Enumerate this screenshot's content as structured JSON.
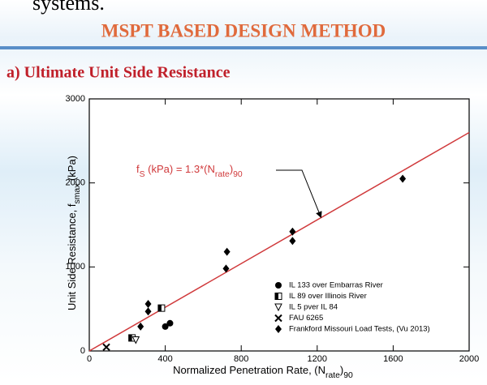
{
  "top_text": "systems.",
  "slide_title": "MSPT BASED DESIGN METHOD",
  "section_title": "a) Ultimate Unit Side Resistance",
  "chart_data": {
    "type": "scatter",
    "x_label": [
      {
        "text": "Normalized Penetration Rate, (N"
      },
      {
        "text": "rate",
        "sub": true
      },
      {
        "text": ")"
      },
      {
        "text": "90",
        "sub": true
      }
    ],
    "y_label": [
      {
        "text": "Unit Side Resistance, f"
      },
      {
        "text": "smax",
        "sub": true
      },
      {
        "text": " (kPa)"
      }
    ],
    "xlim": [
      0,
      2000
    ],
    "xticks": [
      0,
      400,
      800,
      1200,
      1600,
      2000
    ],
    "ylim": [
      0,
      3000
    ],
    "yticks": [
      0,
      1000,
      2000,
      3000
    ],
    "fit_line": {
      "x": [
        0,
        2000
      ],
      "values": [
        0,
        2600
      ],
      "color": "#d0393b"
    },
    "annotation": [
      {
        "text": "f"
      },
      {
        "text": "S",
        "sub": true
      },
      {
        "text": " (kPa) = 1.3*(N"
      },
      {
        "text": "rate",
        "sub": true
      },
      {
        "text": ")"
      },
      {
        "text": "90",
        "sub": true
      }
    ],
    "series": [
      {
        "name": "IL 133 over Embarras River",
        "marker": "circle",
        "color": "#000000",
        "x": [
          400,
          425
        ],
        "values": [
          290,
          330
        ]
      },
      {
        "name": "IL 89 over Illinois River",
        "marker": "half-square",
        "color": "#000000",
        "x": [
          225,
          380
        ],
        "values": [
          155,
          510
        ]
      },
      {
        "name": "IL 5 pver IL 84",
        "marker": "triangle-down",
        "color": "#000000",
        "x": [
          245
        ],
        "values": [
          130
        ]
      },
      {
        "name": "FAU 6265",
        "marker": "x",
        "color": "#000000",
        "x": [
          90
        ],
        "values": [
          45
        ]
      },
      {
        "name": "Frankford Missouri Load Tests, (Vu 2013)",
        "marker": "diamond",
        "color": "#000000",
        "x": [
          270,
          310,
          310,
          720,
          725,
          1070,
          1070,
          1650
        ],
        "values": [
          290,
          470,
          560,
          980,
          1180,
          1310,
          1420,
          2050
        ]
      }
    ]
  }
}
